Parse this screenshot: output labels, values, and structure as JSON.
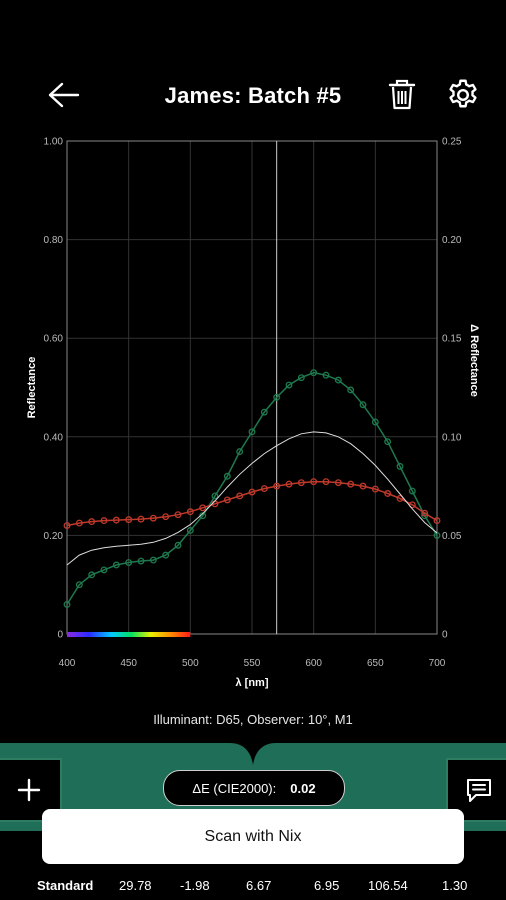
{
  "header": {
    "title": "James: Batch #5"
  },
  "icons": {
    "back": "arrow-left-icon",
    "delete": "trash-icon",
    "settings": "gear-icon",
    "add": "plus-icon",
    "notes": "comment-icon"
  },
  "chart_data": {
    "type": "line",
    "xlabel": "λ [nm]",
    "ylabel": "Reflectance",
    "y2label": "Δ Reflectance",
    "xlim": [
      400,
      700
    ],
    "ylim": [
      0,
      1.0
    ],
    "y2lim": [
      0,
      0.25
    ],
    "x_ticks": [
      "400",
      "450",
      "500",
      "550",
      "600",
      "650",
      "700"
    ],
    "y_ticks": [
      "0",
      "0.20",
      "0.40",
      "0.60",
      "0.80",
      "1.00"
    ],
    "y2_ticks": [
      "0",
      "0.05",
      "0.10",
      "0.15",
      "0.20",
      "0.25"
    ],
    "grid": true,
    "cursor_x": 570,
    "colors": {
      "green": "#1e7a4e",
      "red": "#c0392b",
      "white": "#dddddd",
      "grid": "#333333",
      "axis": "#888888"
    },
    "x": [
      400,
      410,
      420,
      430,
      440,
      450,
      460,
      470,
      480,
      490,
      500,
      510,
      520,
      530,
      540,
      550,
      560,
      570,
      580,
      590,
      600,
      610,
      620,
      630,
      640,
      650,
      660,
      670,
      680,
      690,
      700
    ],
    "series": [
      {
        "values": [
          0.06,
          0.1,
          0.12,
          0.13,
          0.14,
          0.145,
          0.148,
          0.15,
          0.16,
          0.18,
          0.21,
          0.24,
          0.28,
          0.32,
          0.37,
          0.41,
          0.45,
          0.48,
          0.505,
          0.52,
          0.53,
          0.525,
          0.515,
          0.495,
          0.465,
          0.43,
          0.39,
          0.34,
          0.29,
          0.24,
          0.2
        ]
      },
      {
        "values": [
          0.22,
          0.225,
          0.228,
          0.23,
          0.231,
          0.232,
          0.233,
          0.235,
          0.238,
          0.242,
          0.248,
          0.256,
          0.264,
          0.272,
          0.28,
          0.288,
          0.295,
          0.3,
          0.304,
          0.307,
          0.309,
          0.309,
          0.307,
          0.304,
          0.3,
          0.294,
          0.285,
          0.275,
          0.262,
          0.245,
          0.23
        ]
      },
      {
        "values": [
          0.14,
          0.16,
          0.17,
          0.175,
          0.178,
          0.18,
          0.182,
          0.186,
          0.194,
          0.206,
          0.222,
          0.244,
          0.27,
          0.298,
          0.324,
          0.346,
          0.366,
          0.382,
          0.396,
          0.406,
          0.41,
          0.408,
          0.4,
          0.386,
          0.366,
          0.342,
          0.314,
          0.284,
          0.254,
          0.226,
          0.205
        ]
      }
    ]
  },
  "illuminant_text": "Illuminant: D65, Observer: 10°, M1",
  "delta_e": {
    "label": "ΔE (CIE2000):",
    "value": "0.02"
  },
  "scan_button": "Scan with Nix",
  "standard_row": [
    "Standard",
    "29.78",
    "-1.98",
    "6.67",
    "6.95",
    "106.54",
    "1.30"
  ]
}
